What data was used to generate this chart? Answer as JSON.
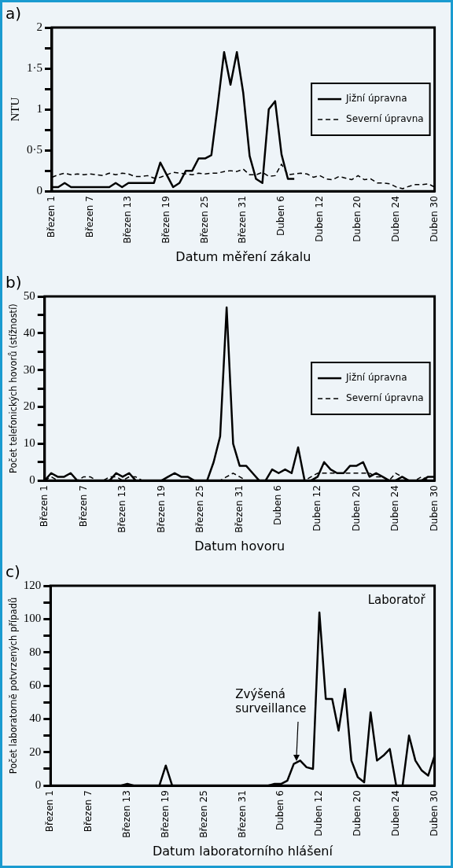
{
  "chart_data": [
    {
      "type": "line",
      "title": "a)",
      "xlabel": "Datum měření zákalu",
      "ylabel": "NTU",
      "categories": [
        "Březen 1",
        null,
        null,
        null,
        null,
        null,
        "Březen 7",
        null,
        null,
        null,
        null,
        null,
        "Březen 13",
        null,
        null,
        null,
        null,
        null,
        "Březen 19",
        null,
        null,
        null,
        null,
        null,
        "Březen 25",
        null,
        null,
        null,
        null,
        null,
        "Březen 31",
        null,
        null,
        null,
        null,
        null,
        "Duben 6",
        null,
        null,
        null,
        null,
        null,
        "Duben 12",
        null,
        null,
        null,
        null,
        null,
        "Duben 20",
        null,
        null,
        null,
        null,
        null,
        "Duben 24",
        null,
        null,
        null,
        null,
        null,
        "Duben 30"
      ],
      "series": [
        {
          "name": "Jižní úpravna",
          "color": "#000000",
          "line_style": "solid",
          "values": [
            0.05,
            0.05,
            0.1,
            0.05,
            0.05,
            0.05,
            0.05,
            0.05,
            0.05,
            0.05,
            0.1,
            0.05,
            0.1,
            0.1,
            0.1,
            0.1,
            0.1,
            0.35,
            0.2,
            0.05,
            0.1,
            0.25,
            0.25,
            0.4,
            0.4,
            0.44,
            1.05,
            1.7,
            1.3,
            1.7,
            1.2,
            0.43,
            0.15,
            0.1,
            1.0,
            1.1,
            0.45,
            0.15,
            0.15,
            null,
            null,
            null,
            null,
            null,
            null,
            null,
            null,
            null,
            null,
            null,
            null,
            null,
            null,
            null,
            null,
            null,
            null,
            null,
            null,
            null,
            null
          ]
        },
        {
          "name": "Severní úpravna",
          "color": "#000000",
          "line_style": "dashed",
          "values": [
            0.17,
            0.2,
            0.22,
            0.2,
            0.21,
            0.2,
            0.21,
            0.2,
            0.19,
            0.22,
            0.2,
            0.22,
            0.21,
            0.18,
            0.18,
            0.19,
            0.16,
            0.17,
            0.2,
            0.23,
            0.22,
            0.21,
            0.2,
            0.22,
            0.21,
            0.22,
            0.22,
            0.24,
            0.25,
            0.24,
            0.27,
            0.2,
            0.2,
            0.23,
            0.18,
            0.19,
            0.33,
            0.2,
            0.21,
            0.22,
            0.21,
            0.17,
            0.19,
            0.15,
            0.14,
            0.18,
            0.16,
            0.14,
            0.19,
            0.14,
            0.15,
            0.1,
            0.1,
            0.09,
            0.05,
            0.03,
            0.06,
            0.08,
            0.08,
            0.09,
            0.05
          ]
        }
      ],
      "ylim": [
        0,
        2
      ],
      "yticks": [
        0,
        {
          "value": 0.25,
          "label": null
        },
        {
          "value": 0.5,
          "label": "0·5"
        },
        {
          "value": 0.75,
          "label": null
        },
        1,
        {
          "value": 1.25,
          "label": null
        },
        {
          "value": 1.5,
          "label": "1·5"
        },
        {
          "value": 1.75,
          "label": null
        },
        2
      ],
      "grid": false,
      "legend": "right",
      "marker": "none"
    },
    {
      "type": "line",
      "title": "b)",
      "xlabel": "Datum hovoru",
      "ylabel": "Počet telefonických hovorů (stížností)",
      "categories": [
        "Březen 1",
        null,
        null,
        null,
        null,
        null,
        "Březen 7",
        null,
        null,
        null,
        null,
        null,
        "Březen 13",
        null,
        null,
        null,
        null,
        null,
        "Březen 19",
        null,
        null,
        null,
        null,
        null,
        "Březen 25",
        null,
        null,
        null,
        null,
        null,
        "Březen 31",
        null,
        null,
        null,
        null,
        null,
        "Duben 6",
        null,
        null,
        null,
        null,
        null,
        "Duben 12",
        null,
        null,
        null,
        null,
        null,
        "Duben 20",
        null,
        null,
        null,
        null,
        null,
        "Duben 24",
        null,
        null,
        null,
        null,
        null,
        "Duben 30"
      ],
      "series": [
        {
          "name": "Jižní úpravna",
          "color": "#000000",
          "line_style": "solid",
          "values": [
            0,
            2,
            1,
            1,
            2,
            0,
            0,
            0,
            0,
            0,
            0,
            2,
            1,
            2,
            0,
            0,
            0,
            0,
            0,
            1,
            2,
            1,
            1,
            0,
            0,
            0,
            5,
            12,
            47,
            10,
            4,
            4,
            2,
            0,
            0,
            3,
            2,
            3,
            2,
            9,
            0,
            0,
            1,
            5,
            3,
            2,
            2,
            4,
            4,
            5,
            1,
            2,
            1,
            0,
            0,
            1,
            0,
            0,
            0,
            1,
            1
          ]
        },
        {
          "name": "Severní úpravna",
          "color": "#000000",
          "line_style": "dashed",
          "values": [
            0,
            1,
            0,
            0,
            0,
            0,
            1,
            1,
            0,
            0,
            1,
            1,
            0,
            1,
            1,
            0,
            0,
            0,
            0,
            0,
            0,
            0,
            0,
            0,
            0,
            0,
            0,
            0,
            1,
            2,
            1,
            0,
            0,
            0,
            0,
            0,
            0,
            0,
            0,
            0,
            0,
            1,
            2,
            2,
            2,
            2,
            2,
            2,
            2,
            2,
            2,
            1,
            1,
            0,
            2,
            1,
            0,
            0,
            1,
            0,
            0
          ]
        }
      ],
      "ylim": [
        0,
        50
      ],
      "yticks": [
        0,
        {
          "value": 5,
          "label": null
        },
        10,
        {
          "value": 15,
          "label": null
        },
        20,
        {
          "value": 25,
          "label": null
        },
        30,
        {
          "value": 35,
          "label": null
        },
        40,
        {
          "value": 45,
          "label": null
        },
        50
      ],
      "grid": false,
      "legend": "right",
      "marker": "none"
    },
    {
      "type": "line",
      "title": "c)",
      "xlabel": "Datum laboratorního hlášení",
      "ylabel": "Počet laboratorně potvrzených případů",
      "categories": [
        "Březen 1",
        null,
        null,
        null,
        null,
        null,
        "Březen 7",
        null,
        null,
        null,
        null,
        null,
        "Březen 13",
        null,
        null,
        null,
        null,
        null,
        "Březen 19",
        null,
        null,
        null,
        null,
        null,
        "Březen 25",
        null,
        null,
        null,
        null,
        null,
        "Březen 31",
        null,
        null,
        null,
        null,
        null,
        "Duben 6",
        null,
        null,
        null,
        null,
        null,
        "Duben 12",
        null,
        null,
        null,
        null,
        null,
        "Duben 20",
        null,
        null,
        null,
        null,
        null,
        "Duben 24",
        null,
        null,
        null,
        null,
        null,
        "Duben 30"
      ],
      "series": [
        {
          "name": "Laboratoř",
          "color": "#000000",
          "line_style": "solid",
          "values": [
            0,
            0,
            0,
            0,
            0,
            0,
            0,
            0,
            0,
            0,
            0,
            0,
            1,
            0,
            0,
            0,
            0,
            0,
            12,
            0,
            0,
            0,
            0,
            0,
            0,
            0,
            0,
            0,
            0,
            0,
            0,
            0,
            0,
            0,
            0,
            1,
            1,
            3,
            13,
            15,
            11,
            10,
            104,
            52,
            52,
            33,
            58,
            15,
            5,
            2,
            44,
            15,
            18,
            22,
            0,
            0,
            30,
            15,
            9,
            6,
            18
          ]
        }
      ],
      "ylim": [
        0,
        120
      ],
      "yticks": [
        0,
        {
          "value": 10,
          "label": null
        },
        20,
        {
          "value": 30,
          "label": null
        },
        40,
        {
          "value": 50,
          "label": null
        },
        60,
        {
          "value": 70,
          "label": null
        },
        80,
        {
          "value": 90,
          "label": null
        },
        100,
        {
          "value": 110,
          "label": null
        },
        120
      ],
      "annotations": [
        "Zvýšená surveillance"
      ],
      "grid": false,
      "legend": false,
      "marker": "none"
    }
  ]
}
